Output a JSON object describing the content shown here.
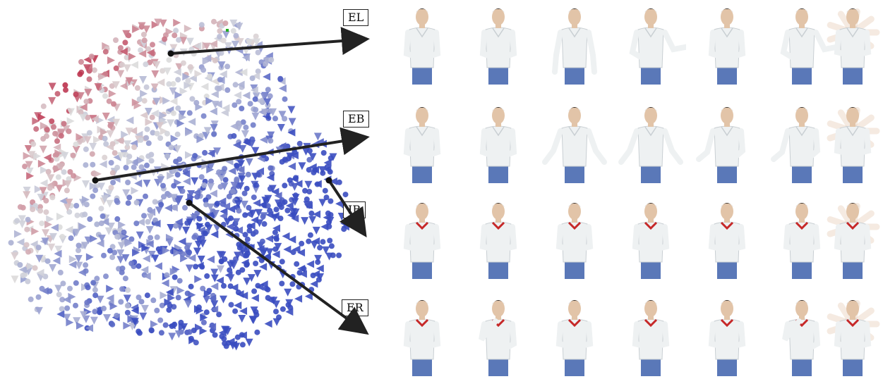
{
  "labels": {
    "el": "EL",
    "eb": "EB",
    "ib": "IB",
    "er": "ER"
  },
  "colors": {
    "cool_end": "#3a4cc0",
    "mid": "#dcdcdc",
    "warm_end": "#b40426",
    "marker_green": "#22aa22",
    "arrow": "#222222"
  },
  "rows": [
    {
      "label_ref": "el",
      "shirt": "vneck",
      "frames": [
        "neutral",
        "low-hands",
        "arms-down",
        "arm-out-left",
        "neutral",
        "arm-out-left",
        "blur"
      ]
    },
    {
      "label_ref": "eb",
      "shirt": "vneck",
      "frames": [
        "neutral",
        "low-hands",
        "arms-spread",
        "arms-spread",
        "right-hand-out",
        "right-hand-out",
        "blur"
      ]
    },
    {
      "label_ref": "ib",
      "shirt": "redcollar",
      "frames": [
        "crossed",
        "crossed",
        "crossed",
        "crossed",
        "crossed",
        "crossed",
        "blur"
      ]
    },
    {
      "label_ref": "er",
      "shirt": "redcollar",
      "frames": [
        "crossed",
        "hand-chin",
        "crossed",
        "crossed",
        "crossed",
        "hand-chin",
        "blur"
      ]
    }
  ]
}
